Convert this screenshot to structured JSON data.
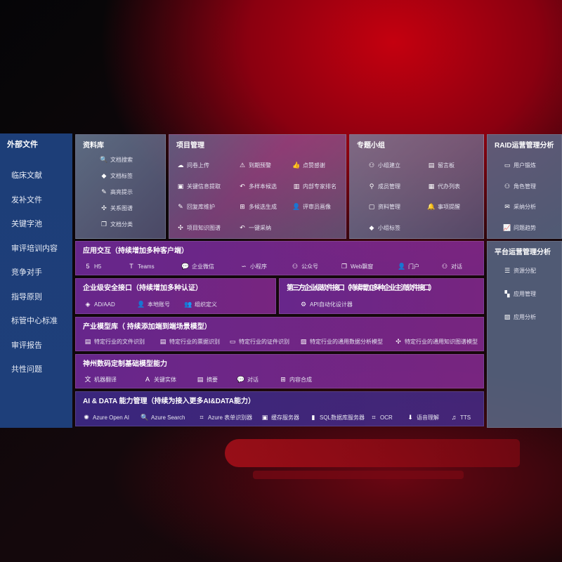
{
  "left": {
    "title": "外部文件",
    "items": [
      "临床文献",
      "发补文件",
      "关键字池",
      "审评培训内容",
      "竞争对手",
      "指导原则",
      "标管中心标准",
      "审评报告",
      "共性问题"
    ]
  },
  "panels": [
    {
      "id": "ziliaoku",
      "title": "资料库",
      "items": [
        {
          "icon": "document-search-icon",
          "glyph": "🔍",
          "label": "文档搜索"
        },
        {
          "icon": "tag-icon",
          "glyph": "◆",
          "label": "文档标签"
        },
        {
          "icon": "pen-icon",
          "glyph": "✎",
          "label": "高亮提示"
        },
        {
          "icon": "graph-icon",
          "glyph": "✣",
          "label": "关系图谱"
        },
        {
          "icon": "documents-icon",
          "glyph": "❐",
          "label": "文档分类"
        }
      ]
    },
    {
      "id": "xiangmu",
      "title": "项目管理",
      "items": [
        {
          "icon": "cloud-upload-icon",
          "glyph": "☁",
          "label": "问卷上传"
        },
        {
          "icon": "alarm-icon",
          "glyph": "⚠",
          "label": "到期预警"
        },
        {
          "icon": "thumbs-up-icon",
          "glyph": "👍",
          "label": "点赞感谢"
        },
        {
          "icon": "window-icon",
          "glyph": "▣",
          "label": "关键信息提取"
        },
        {
          "icon": "reply-icon",
          "glyph": "↶",
          "label": "多样本候选"
        },
        {
          "icon": "ranking-icon",
          "glyph": "▥",
          "label": "内部专家排名"
        },
        {
          "icon": "edit-icon",
          "glyph": "✎",
          "label": "回复库维护"
        },
        {
          "icon": "puzzle-icon",
          "glyph": "⊞",
          "label": "多候选生成"
        },
        {
          "icon": "user-icon",
          "glyph": "👤",
          "label": "评审员画像"
        },
        {
          "icon": "knowledge-graph-icon",
          "glyph": "✣",
          "label": "项目知识图谱"
        },
        {
          "icon": "reply-icon",
          "glyph": "↶",
          "label": "一键采纳"
        }
      ]
    },
    {
      "id": "zhuanti",
      "title": "专题小组",
      "items": [
        {
          "icon": "group-icon",
          "glyph": "⚇",
          "label": "小组建立"
        },
        {
          "icon": "bbs-icon",
          "glyph": "▤",
          "label": "留言板"
        },
        {
          "icon": "member-add-icon",
          "glyph": "⚲",
          "label": "成员管理"
        },
        {
          "icon": "clipboard-icon",
          "glyph": "▦",
          "label": "代办列表"
        },
        {
          "icon": "folder-icon",
          "glyph": "▢",
          "label": "资料管理"
        },
        {
          "icon": "bell-icon",
          "glyph": "🔔",
          "label": "事项提醒"
        },
        {
          "icon": "tag-icon",
          "glyph": "◆",
          "label": "小组标签"
        }
      ]
    },
    {
      "id": "raid",
      "title": "RAID运营管理分析",
      "items": [
        {
          "icon": "id-card-icon",
          "glyph": "▭",
          "label": "用户锻炼"
        },
        {
          "icon": "users-icon",
          "glyph": "⚇",
          "label": "角色管理"
        },
        {
          "icon": "qa-icon",
          "glyph": "✉",
          "label": "采纳分析"
        },
        {
          "icon": "trend-icon",
          "glyph": "📈",
          "label": "问题趋势"
        }
      ]
    },
    {
      "id": "pingtai",
      "title": "平台运营管理分析",
      "items": [
        {
          "icon": "list-icon",
          "glyph": "☰",
          "label": "资源分配"
        },
        {
          "icon": "apps-icon",
          "glyph": "▚",
          "label": "应用管理"
        },
        {
          "icon": "analysis-icon",
          "glyph": "▨",
          "label": "应用分析"
        }
      ]
    },
    {
      "id": "yingyong",
      "title": "应用交互（持续增加多种客户端）",
      "items": [
        {
          "icon": "html5-icon",
          "glyph": "5",
          "label": "H5"
        },
        {
          "icon": "teams-icon",
          "glyph": "T",
          "label": "Teams"
        },
        {
          "icon": "wecom-icon",
          "glyph": "💬",
          "label": "企业微信"
        },
        {
          "icon": "mini-program-icon",
          "glyph": "∽",
          "label": "小程序"
        },
        {
          "icon": "users-icon",
          "glyph": "⚇",
          "label": "公众号"
        },
        {
          "icon": "window-icon",
          "glyph": "❐",
          "label": "Web飘窗"
        },
        {
          "icon": "portal-icon",
          "glyph": "👤",
          "label": "门户"
        },
        {
          "icon": "chat-users-icon",
          "glyph": "⚇",
          "label": "对话"
        }
      ]
    },
    {
      "id": "anquan",
      "title": "企业级安全接口（持续增加多种认证）",
      "items": [
        {
          "icon": "ad-icon",
          "glyph": "◈",
          "label": "AD/AAD"
        },
        {
          "icon": "local-account-icon",
          "glyph": "👤",
          "label": "本地账号"
        },
        {
          "icon": "organization-icon",
          "glyph": "👥",
          "label": "组织定义"
        }
      ]
    },
    {
      "id": "disanfang",
      "title": "第三方企业级软件接口（持续增加多种企业主流软件接口）",
      "items": [
        {
          "icon": "gear-icon",
          "glyph": "⚙",
          "label": "API自动化设计器"
        }
      ]
    },
    {
      "id": "chanye",
      "title": "产业模型库（ 持续添加端到端场景模型）",
      "items": [
        {
          "icon": "file-icon",
          "glyph": "▤",
          "label": "特定行业的文件识别"
        },
        {
          "icon": "receipt-icon",
          "glyph": "▤",
          "label": "特定行业的票据识别"
        },
        {
          "icon": "id-card-icon",
          "glyph": "▭",
          "label": "特定行业的证件识别"
        },
        {
          "icon": "chart-icon",
          "glyph": "▨",
          "label": "特定行业的通用数据分析模型"
        },
        {
          "icon": "graph-icon",
          "glyph": "✣",
          "label": "特定行业的通用知识图谱模型"
        }
      ]
    },
    {
      "id": "shenzhou",
      "title": "神州数码定制基础模型能力",
      "items": [
        {
          "icon": "translate-icon",
          "glyph": "文",
          "label": "机器翻译"
        },
        {
          "icon": "entity-icon",
          "glyph": "A",
          "label": "关键实体"
        },
        {
          "icon": "summary-icon",
          "glyph": "▤",
          "label": "摘要"
        },
        {
          "icon": "chat-icon",
          "glyph": "💬",
          "label": "对话"
        },
        {
          "icon": "compose-icon",
          "glyph": "⊞",
          "label": "内容合成"
        }
      ]
    },
    {
      "id": "aidata",
      "title": "AI & DATA 能力管理（持续为接入更多AI&DATA能力）",
      "items": [
        {
          "icon": "openai-icon",
          "glyph": "✺",
          "label": "Azure Open AI"
        },
        {
          "icon": "search-icon",
          "glyph": "🔍",
          "label": "Azure Search"
        },
        {
          "icon": "form-recognizer-icon",
          "glyph": "⌗",
          "label": "Azure 表单识别器"
        },
        {
          "icon": "cache-icon",
          "glyph": "▣",
          "label": "缓存服务器"
        },
        {
          "icon": "database-icon",
          "glyph": "▮",
          "label": "SQL数据库服务器"
        },
        {
          "icon": "ocr-icon",
          "glyph": "⌗",
          "label": "OCR"
        },
        {
          "icon": "voice-icon",
          "glyph": "⬇",
          "label": "语音理解"
        },
        {
          "icon": "tts-icon",
          "glyph": "♫",
          "label": "TTS"
        }
      ]
    }
  ]
}
